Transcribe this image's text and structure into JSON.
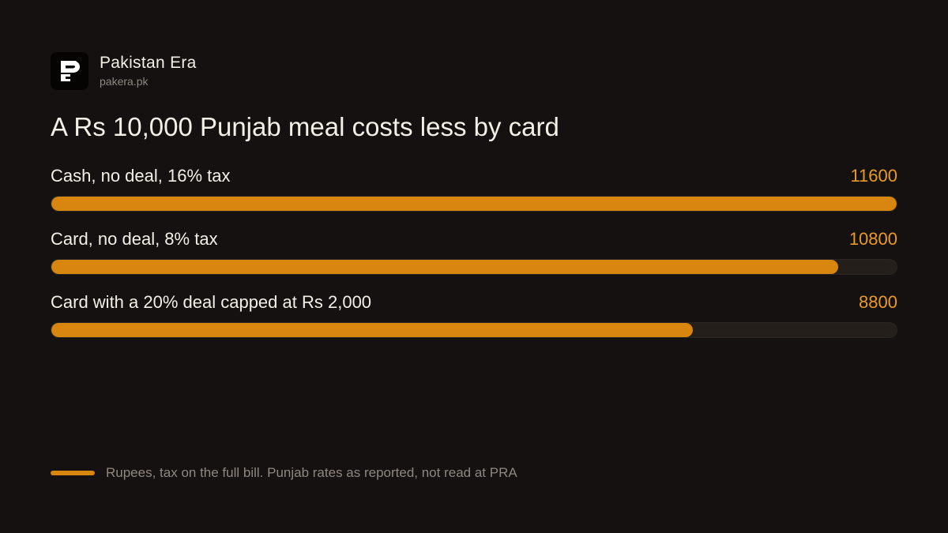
{
  "brand": {
    "name": "Pakistan Era",
    "url": "pakera.pk",
    "logo_icon": "pakistan-era-logo-icon"
  },
  "colors": {
    "background": "#141110",
    "accent": "#d8860f",
    "value_text": "#e89a2a",
    "track": "#241f1a"
  },
  "chart_data": {
    "type": "bar",
    "orientation": "horizontal",
    "title": "A Rs 10,000 Punjab meal costs less by card",
    "categories": [
      "Cash, no deal, 16% tax",
      "Card, no deal, 8% tax",
      "Card with a 20% deal capped at Rs 2,000"
    ],
    "values": [
      11600,
      10800,
      8800
    ],
    "xlim": [
      0,
      11600
    ],
    "grid": false,
    "note": "Rupees, tax on the full bill. Punjab rates as reported, not read at PRA"
  }
}
